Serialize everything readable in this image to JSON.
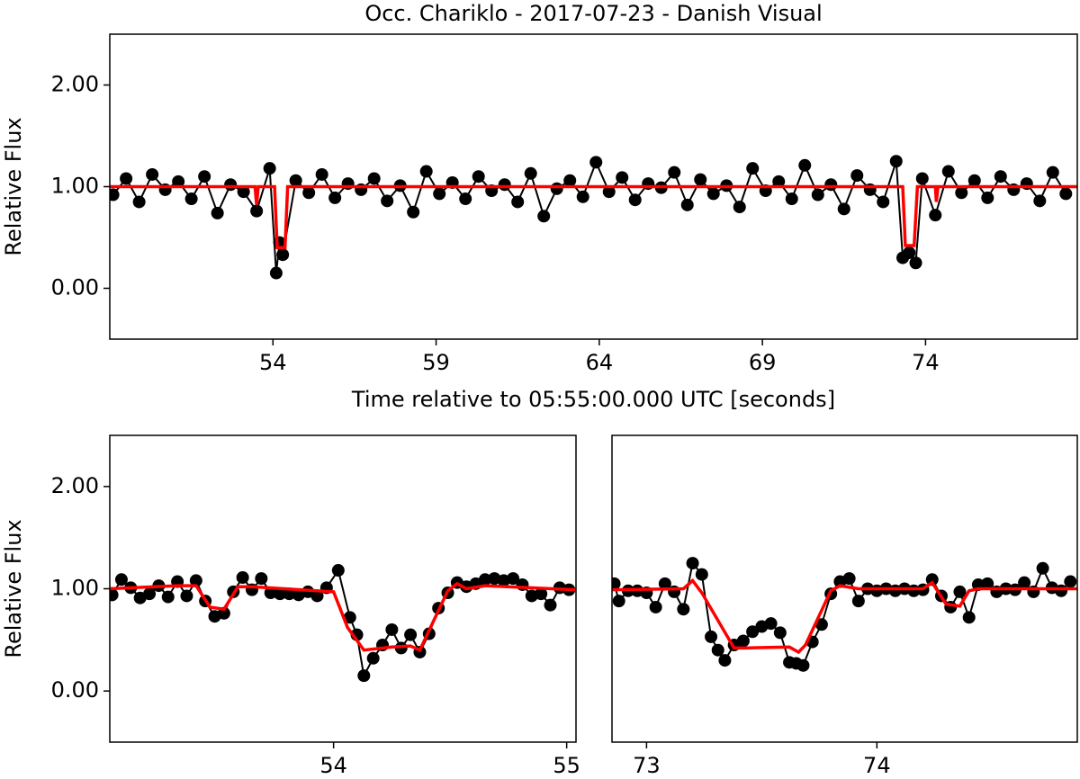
{
  "chart_data": [
    {
      "type": "line",
      "title": "Occ. Chariklo - 2017-07-23 - Danish Visual",
      "x_label": "Time relative to 05:55:00.000 UTC [seconds]",
      "y_label": "Relative Flux",
      "xlim": [
        49,
        78.65
      ],
      "ylim": [
        -0.5,
        2.5
      ],
      "xticks": [
        54,
        59,
        64,
        69,
        74
      ],
      "yticks": [
        {
          "value": 2,
          "label": "2.00"
        },
        {
          "value": 1,
          "label": "1.00"
        },
        {
          "value": 0,
          "label": "0.00"
        }
      ],
      "series": [
        {
          "color": "#000000",
          "marker": "o",
          "x": [
            49.1,
            49.5,
            49.9,
            50.3,
            50.7,
            51.1,
            51.5,
            51.9,
            52.3,
            52.7,
            53.1,
            53.5,
            53.9,
            54.1,
            54.2,
            54.3,
            54.7,
            55.1,
            55.5,
            55.9,
            56.3,
            56.7,
            57.1,
            57.5,
            57.9,
            58.3,
            58.7,
            59.1,
            59.5,
            59.9,
            60.3,
            60.7,
            61.1,
            61.5,
            61.9,
            62.3,
            62.7,
            63.1,
            63.5,
            63.9,
            64.3,
            64.7,
            65.1,
            65.5,
            65.9,
            66.3,
            66.7,
            67.1,
            67.5,
            67.9,
            68.3,
            68.7,
            69.1,
            69.5,
            69.9,
            70.3,
            70.7,
            71.1,
            71.5,
            71.9,
            72.3,
            72.7,
            73.1,
            73.3,
            73.5,
            73.7,
            73.9,
            74.3,
            74.7,
            75.1,
            75.5,
            75.9,
            76.3,
            76.7,
            77.1,
            77.5,
            77.9,
            78.3
          ],
          "values": [
            0.92,
            1.08,
            0.85,
            1.12,
            0.97,
            1.05,
            0.88,
            1.1,
            0.74,
            1.02,
            0.95,
            0.76,
            1.18,
            0.15,
            0.45,
            0.33,
            1.06,
            0.94,
            1.12,
            0.89,
            1.03,
            0.97,
            1.08,
            0.86,
            1.01,
            0.75,
            1.15,
            0.93,
            1.04,
            0.88,
            1.1,
            0.96,
            1.02,
            0.85,
            1.13,
            0.71,
            0.98,
            1.06,
            0.9,
            1.24,
            0.95,
            1.09,
            0.87,
            1.03,
            0.99,
            1.14,
            0.82,
            1.07,
            0.93,
            1.01,
            0.8,
            1.18,
            0.96,
            1.05,
            0.88,
            1.21,
            0.92,
            1.02,
            0.78,
            1.11,
            0.97,
            0.85,
            1.25,
            0.3,
            0.35,
            0.25,
            1.08,
            0.72,
            1.15,
            0.94,
            1.06,
            0.89,
            1.1,
            0.97,
            1.03,
            0.86,
            1.14,
            0.93
          ]
        },
        {
          "color": "#ff0000",
          "x": [
            49,
            53.45,
            53.5,
            53.55,
            54.05,
            54.13,
            54.37,
            54.45,
            73.3,
            73.38,
            73.65,
            73.75,
            74.3,
            74.33,
            74.38,
            78.65
          ],
          "values": [
            1.0,
            1.0,
            0.82,
            1.0,
            1.0,
            0.4,
            0.4,
            1.0,
            1.0,
            0.42,
            0.42,
            1.0,
            1.0,
            0.85,
            1.0,
            1.0
          ]
        }
      ]
    },
    {
      "type": "line",
      "y_label": "Relative Flux",
      "xlim": [
        53.04,
        55.04
      ],
      "ylim": [
        -0.5,
        2.5
      ],
      "xticks": [
        54,
        55
      ],
      "yticks": [
        {
          "value": 2,
          "label": "2.00"
        },
        {
          "value": 1,
          "label": "1.00"
        },
        {
          "value": 0,
          "label": "0.00"
        }
      ],
      "series": [
        {
          "color": "#000000",
          "marker": "o",
          "x": [
            53.05,
            53.09,
            53.13,
            53.17,
            53.21,
            53.25,
            53.29,
            53.33,
            53.37,
            53.41,
            53.45,
            53.49,
            53.53,
            53.57,
            53.61,
            53.65,
            53.69,
            53.73,
            53.77,
            53.81,
            53.85,
            53.89,
            53.93,
            53.97,
            54.02,
            54.07,
            54.1,
            54.13,
            54.17,
            54.21,
            54.25,
            54.29,
            54.33,
            54.37,
            54.41,
            54.45,
            54.49,
            54.53,
            54.57,
            54.61,
            54.65,
            54.69,
            54.73,
            54.77,
            54.81,
            54.85,
            54.89,
            54.93,
            54.97,
            55.01
          ],
          "values": [
            0.94,
            1.09,
            1.01,
            0.91,
            0.95,
            1.03,
            0.92,
            1.07,
            0.93,
            1.08,
            0.88,
            0.73,
            0.76,
            0.97,
            1.11,
            0.99,
            1.1,
            0.96,
            0.95,
            0.95,
            0.94,
            0.97,
            0.93,
            1.01,
            1.18,
            0.72,
            0.55,
            0.15,
            0.32,
            0.45,
            0.6,
            0.42,
            0.55,
            0.38,
            0.56,
            0.81,
            0.96,
            1.06,
            1.02,
            1.05,
            1.09,
            1.1,
            1.08,
            1.1,
            1.04,
            0.93,
            0.95,
            0.84,
            1.01,
            0.99
          ]
        },
        {
          "color": "#ff0000",
          "x": [
            53.04,
            53.33,
            53.41,
            53.47,
            53.53,
            53.59,
            53.65,
            54.0,
            54.06,
            54.13,
            54.25,
            54.33,
            54.37,
            54.49,
            54.53,
            54.57,
            54.65,
            55.04
          ],
          "values": [
            1.0,
            1.03,
            1.03,
            0.82,
            0.8,
            1.02,
            1.02,
            0.97,
            0.62,
            0.4,
            0.43,
            0.44,
            0.4,
            0.98,
            1.05,
            1.0,
            1.03,
            0.99
          ]
        }
      ]
    },
    {
      "type": "line",
      "xlim": [
        72.85,
        74.87
      ],
      "ylim": [
        -0.5,
        2.5
      ],
      "xticks": [
        73,
        74
      ],
      "series": [
        {
          "color": "#000000",
          "marker": "o",
          "x": [
            72.86,
            72.88,
            72.92,
            72.96,
            73.0,
            73.04,
            73.08,
            73.12,
            73.16,
            73.2,
            73.24,
            73.28,
            73.31,
            73.34,
            73.38,
            73.42,
            73.46,
            73.5,
            73.54,
            73.58,
            73.62,
            73.65,
            73.68,
            73.72,
            73.76,
            73.8,
            73.84,
            73.88,
            73.92,
            73.96,
            74.0,
            74.04,
            74.08,
            74.12,
            74.16,
            74.2,
            74.24,
            74.28,
            74.32,
            74.36,
            74.4,
            74.44,
            74.48,
            74.52,
            74.56,
            74.6,
            74.64,
            74.68,
            74.72,
            74.76,
            74.8,
            74.84
          ],
          "values": [
            1.05,
            0.88,
            0.98,
            0.98,
            0.96,
            0.82,
            1.05,
            0.97,
            0.8,
            1.25,
            1.14,
            0.53,
            0.4,
            0.3,
            0.45,
            0.49,
            0.58,
            0.63,
            0.66,
            0.57,
            0.28,
            0.27,
            0.25,
            0.48,
            0.65,
            0.95,
            1.07,
            1.1,
            0.88,
            1.0,
            0.98,
            1.0,
            0.98,
            1.0,
            0.98,
            0.99,
            1.09,
            0.93,
            0.82,
            0.97,
            0.72,
            1.04,
            1.05,
            0.97,
            1.0,
            0.99,
            1.06,
            0.97,
            1.2,
            1.01,
            0.98,
            1.07
          ]
        },
        {
          "color": "#ff0000",
          "x": [
            72.85,
            73.16,
            73.2,
            73.24,
            73.38,
            73.42,
            73.62,
            73.66,
            73.69,
            73.8,
            73.84,
            73.92,
            74.2,
            74.24,
            74.3,
            74.36,
            74.4,
            74.44,
            74.87
          ],
          "values": [
            0.99,
            1.0,
            1.08,
            0.96,
            0.42,
            0.42,
            0.43,
            0.38,
            0.45,
            0.98,
            1.03,
            1.0,
            1.0,
            1.06,
            0.85,
            0.83,
            0.98,
            1.0,
            1.0
          ]
        }
      ]
    }
  ]
}
